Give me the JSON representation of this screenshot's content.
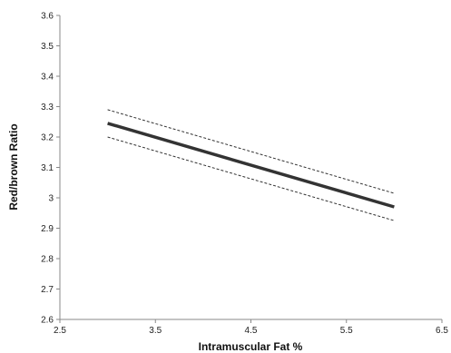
{
  "chart_data": {
    "type": "line",
    "title": "",
    "xlabel": "Intramuscular Fat %",
    "ylabel": "Red/brown Ratio",
    "xlim": [
      2.5,
      6.5
    ],
    "ylim": [
      2.6,
      3.6
    ],
    "x_ticks": [
      2.5,
      3.5,
      4.5,
      5.5,
      6.5
    ],
    "x_tick_labels": [
      "2.5",
      "3.5",
      "4.5",
      "5.5",
      "6.5"
    ],
    "y_ticks": [
      2.6,
      2.7,
      2.8,
      2.9,
      3.0,
      3.1,
      3.2,
      3.3,
      3.4,
      3.5,
      3.6
    ],
    "y_tick_labels": [
      "2.6",
      "2.7",
      "2.8",
      "2.9",
      "3",
      "3.1",
      "3.2",
      "3.3",
      "3.4",
      "3.5",
      "3.6"
    ],
    "grid": false,
    "legend": "none",
    "series": [
      {
        "role": "fit",
        "style": "solid",
        "color": "#333333",
        "x": [
          3.0,
          6.0
        ],
        "y": [
          3.245,
          2.97
        ]
      },
      {
        "role": "upper-bound",
        "style": "dashed",
        "color": "#333333",
        "x": [
          3.0,
          6.0
        ],
        "y": [
          3.29,
          3.015
        ]
      },
      {
        "role": "lower-bound",
        "style": "dashed",
        "color": "#333333",
        "x": [
          3.0,
          6.0
        ],
        "y": [
          3.2,
          2.925
        ]
      }
    ]
  }
}
